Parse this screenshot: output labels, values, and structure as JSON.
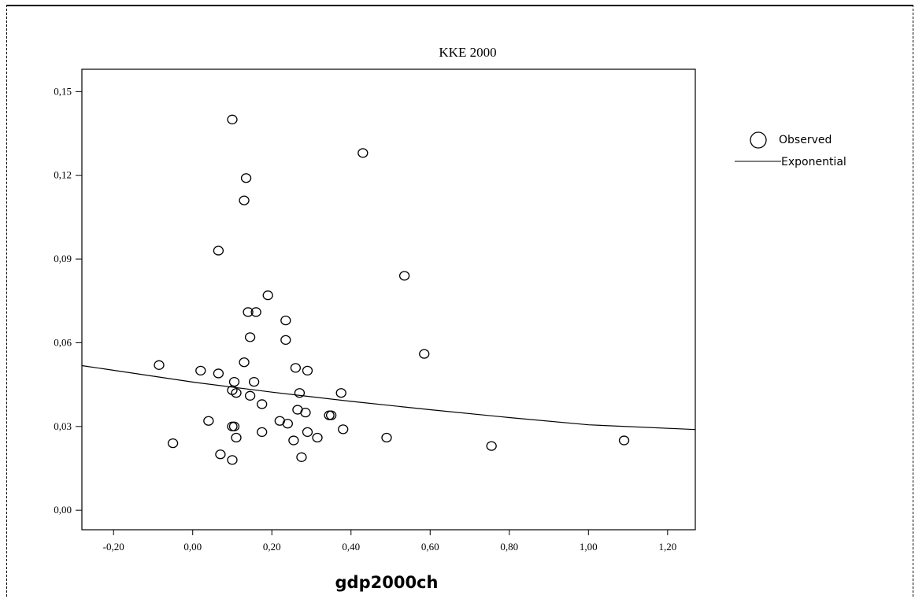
{
  "chart_data": {
    "type": "scatter",
    "title": "KKE 2000",
    "xlabel": "gdp2000ch",
    "ylabel": "",
    "xlim": [
      -0.28,
      1.27
    ],
    "ylim": [
      -0.007,
      0.158
    ],
    "x_ticks": [
      -0.2,
      0.0,
      0.2,
      0.4,
      0.6,
      0.8,
      1.0,
      1.2
    ],
    "x_tick_labels": [
      "-0,20",
      "0,00",
      "0,20",
      "0,40",
      "0,60",
      "0,80",
      "1,00",
      "1,20"
    ],
    "y_ticks": [
      0.0,
      0.03,
      0.06,
      0.09,
      0.12,
      0.15
    ],
    "y_tick_labels": [
      "0,00",
      "0,03",
      "0,06",
      "0,09",
      "0,12",
      "0,15"
    ],
    "grid": false,
    "legend": {
      "placement": "right",
      "entries": [
        {
          "label": "Observed",
          "symbol": "circle"
        },
        {
          "label": "Exponential",
          "symbol": "line"
        }
      ]
    },
    "series": [
      {
        "name": "Observed",
        "marker": "circle",
        "points": [
          {
            "x": 0.1,
            "y": 0.14
          },
          {
            "x": 0.43,
            "y": 0.128
          },
          {
            "x": 0.135,
            "y": 0.119
          },
          {
            "x": 0.13,
            "y": 0.111
          },
          {
            "x": 0.065,
            "y": 0.093
          },
          {
            "x": 0.535,
            "y": 0.084
          },
          {
            "x": 0.19,
            "y": 0.077
          },
          {
            "x": 0.14,
            "y": 0.071
          },
          {
            "x": 0.16,
            "y": 0.071
          },
          {
            "x": 0.235,
            "y": 0.068
          },
          {
            "x": 0.145,
            "y": 0.062
          },
          {
            "x": 0.235,
            "y": 0.061
          },
          {
            "x": 0.585,
            "y": 0.056
          },
          {
            "x": 0.13,
            "y": 0.053
          },
          {
            "x": -0.085,
            "y": 0.052
          },
          {
            "x": 0.26,
            "y": 0.051
          },
          {
            "x": 0.02,
            "y": 0.05
          },
          {
            "x": 0.29,
            "y": 0.05
          },
          {
            "x": 0.065,
            "y": 0.049
          },
          {
            "x": 0.105,
            "y": 0.046
          },
          {
            "x": 0.155,
            "y": 0.046
          },
          {
            "x": 0.1,
            "y": 0.043
          },
          {
            "x": 0.11,
            "y": 0.042
          },
          {
            "x": 0.27,
            "y": 0.042
          },
          {
            "x": 0.375,
            "y": 0.042
          },
          {
            "x": 0.145,
            "y": 0.041
          },
          {
            "x": 0.175,
            "y": 0.038
          },
          {
            "x": 0.265,
            "y": 0.036
          },
          {
            "x": 0.285,
            "y": 0.035
          },
          {
            "x": 0.345,
            "y": 0.034
          },
          {
            "x": 0.35,
            "y": 0.034
          },
          {
            "x": 0.04,
            "y": 0.032
          },
          {
            "x": 0.22,
            "y": 0.032
          },
          {
            "x": 0.24,
            "y": 0.031
          },
          {
            "x": 0.1,
            "y": 0.03
          },
          {
            "x": 0.105,
            "y": 0.03
          },
          {
            "x": 0.38,
            "y": 0.029
          },
          {
            "x": 0.175,
            "y": 0.028
          },
          {
            "x": 0.29,
            "y": 0.028
          },
          {
            "x": 0.315,
            "y": 0.026
          },
          {
            "x": 0.49,
            "y": 0.026
          },
          {
            "x": 0.11,
            "y": 0.026
          },
          {
            "x": 0.255,
            "y": 0.025
          },
          {
            "x": -0.05,
            "y": 0.024
          },
          {
            "x": 1.09,
            "y": 0.025
          },
          {
            "x": 0.755,
            "y": 0.023
          },
          {
            "x": 0.07,
            "y": 0.02
          },
          {
            "x": 0.275,
            "y": 0.019
          },
          {
            "x": 0.1,
            "y": 0.018
          }
        ]
      },
      {
        "name": "Exponential",
        "marker": "line",
        "points": [
          {
            "x": -0.28,
            "y": 0.0518
          },
          {
            "x": 0.0,
            "y": 0.0459
          },
          {
            "x": 0.2,
            "y": 0.0423
          },
          {
            "x": 0.4,
            "y": 0.039
          },
          {
            "x": 0.6,
            "y": 0.036
          },
          {
            "x": 0.8,
            "y": 0.0332
          },
          {
            "x": 1.0,
            "y": 0.0306
          },
          {
            "x": 1.27,
            "y": 0.0289
          }
        ]
      }
    ]
  }
}
